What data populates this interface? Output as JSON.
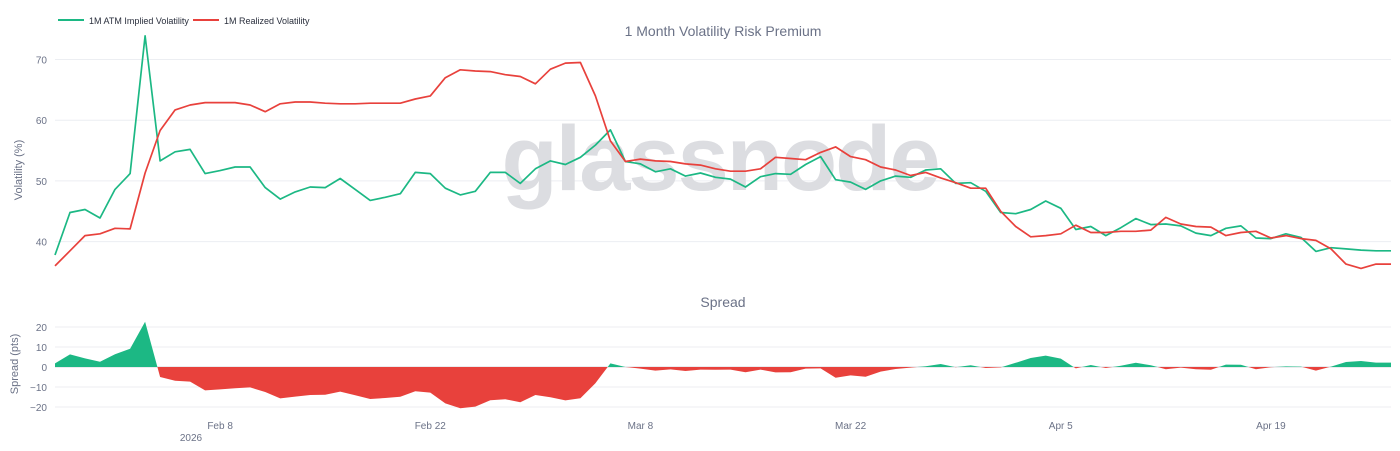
{
  "chart_data": [
    {
      "type": "line",
      "title": "1 Month Volatility Risk Premium",
      "ylabel": "Volatility (%)",
      "ylim": [
        35,
        77
      ],
      "yticks": [
        "40",
        "50",
        "60",
        "70"
      ],
      "legend_position": "top-left",
      "watermark": "glassnode",
      "x": [
        "2026-01-28",
        "2026-01-29",
        "2026-01-30",
        "2026-01-31",
        "2026-02-01",
        "2026-02-02",
        "2026-02-03",
        "2026-02-04",
        "2026-02-05",
        "2026-02-06",
        "2026-02-07",
        "2026-02-08",
        "2026-02-09",
        "2026-02-10",
        "2026-02-11",
        "2026-02-12",
        "2026-02-13",
        "2026-02-14",
        "2026-02-15",
        "2026-02-16",
        "2026-02-17",
        "2026-02-18",
        "2026-02-19",
        "2026-02-20",
        "2026-02-21",
        "2026-02-22",
        "2026-02-23",
        "2026-02-24",
        "2026-02-25",
        "2026-02-26",
        "2026-02-27",
        "2026-02-28",
        "2026-03-01",
        "2026-03-02",
        "2026-03-03",
        "2026-03-04",
        "2026-03-05",
        "2026-03-06",
        "2026-03-07",
        "2026-03-08",
        "2026-03-09",
        "2026-03-10",
        "2026-03-11",
        "2026-03-12",
        "2026-03-13",
        "2026-03-14",
        "2026-03-15",
        "2026-03-16",
        "2026-03-17",
        "2026-03-18",
        "2026-03-19",
        "2026-03-20",
        "2026-03-21",
        "2026-03-22",
        "2026-03-23",
        "2026-03-24",
        "2026-03-25",
        "2026-03-26",
        "2026-03-27",
        "2026-03-28",
        "2026-03-29",
        "2026-03-30",
        "2026-03-31",
        "2026-04-01",
        "2026-04-02",
        "2026-04-03",
        "2026-04-04",
        "2026-04-05",
        "2026-04-06",
        "2026-04-07",
        "2026-04-08",
        "2026-04-09",
        "2026-04-10",
        "2026-04-11",
        "2026-04-12",
        "2026-04-13",
        "2026-04-14",
        "2026-04-15",
        "2026-04-16",
        "2026-04-17",
        "2026-04-18",
        "2026-04-19",
        "2026-04-20",
        "2026-04-21",
        "2026-04-22",
        "2026-04-23",
        "2026-04-24",
        "2026-04-25",
        "2026-04-26",
        "2026-04-27"
      ],
      "series": [
        {
          "name": "1M ATM Implied Volatility",
          "color": "#1cb884",
          "values": [
            37.8,
            44.8,
            45.3,
            43.9,
            48.6,
            51.2,
            73.9,
            53.3,
            54.8,
            55.2,
            51.2,
            51.7,
            52.3,
            52.3,
            48.9,
            47.0,
            48.2,
            49.0,
            48.9,
            50.4,
            48.6,
            46.8,
            47.3,
            47.9,
            51.4,
            51.2,
            48.8,
            47.7,
            48.3,
            51.4,
            51.4,
            49.6,
            52.0,
            53.3,
            52.7,
            53.9,
            55.9,
            58.4,
            53.2,
            52.8,
            51.5,
            52.0,
            50.8,
            51.3,
            50.6,
            50.3,
            49.0,
            50.7,
            51.2,
            51.1,
            52.7,
            54.0,
            50.2,
            49.8,
            48.6,
            50.0,
            50.8,
            50.6,
            51.8,
            52.0,
            49.6,
            49.7,
            48.3,
            44.8,
            44.6,
            45.3,
            46.7,
            45.5,
            42.0,
            42.5,
            41.0,
            42.3,
            43.8,
            42.8,
            42.9,
            42.6,
            41.4,
            41.0,
            42.2,
            42.6,
            40.6,
            40.5,
            41.3,
            40.7,
            38.4,
            39.0,
            38.8,
            38.6,
            38.5,
            38.5
          ]
        },
        {
          "name": "1M Realized Volatility",
          "color": "#e8413c",
          "values": [
            36.0,
            38.5,
            41.0,
            41.3,
            42.2,
            42.1,
            51.3,
            58.3,
            61.7,
            62.5,
            62.9,
            62.9,
            62.9,
            62.5,
            61.4,
            62.7,
            63.0,
            63.0,
            62.8,
            62.7,
            62.7,
            62.8,
            62.8,
            62.8,
            63.5,
            64.0,
            67.0,
            68.3,
            68.1,
            68.0,
            67.5,
            67.2,
            66.0,
            68.4,
            69.4,
            69.5,
            64.0,
            56.6,
            53.2,
            53.6,
            53.3,
            53.2,
            52.8,
            52.6,
            52.0,
            51.6,
            51.6,
            52.0,
            53.9,
            53.7,
            53.5,
            54.7,
            55.6,
            54.0,
            53.5,
            52.3,
            51.8,
            50.9,
            51.4,
            50.5,
            49.7,
            48.8,
            48.8,
            45.0,
            42.5,
            40.8,
            41.0,
            41.3,
            42.7,
            41.5,
            41.5,
            41.7,
            41.7,
            41.9,
            44.0,
            42.9,
            42.5,
            42.4,
            41.0,
            41.5,
            41.7,
            40.6,
            41.0,
            40.5,
            40.2,
            38.8,
            36.3,
            35.6,
            36.3,
            36.3
          ]
        }
      ]
    },
    {
      "type": "area",
      "title": "Spread",
      "ylabel": "Spread (pts)",
      "ylim": [
        -26,
        24
      ],
      "yticks": [
        "20",
        "10",
        "0",
        "−10",
        "−20"
      ],
      "positive_color": "#1cb884",
      "negative_color": "#e8413c",
      "values": [
        1.8,
        6.3,
        4.3,
        2.6,
        6.4,
        9.1,
        22.6,
        -5.0,
        -6.9,
        -7.3,
        -11.7,
        -11.2,
        -10.6,
        -10.2,
        -12.5,
        -15.7,
        -14.8,
        -14.0,
        -13.9,
        -12.3,
        -14.1,
        -16.0,
        -15.5,
        -14.9,
        -12.1,
        -12.8,
        -18.2,
        -20.6,
        -19.8,
        -16.6,
        -16.1,
        -17.6,
        -14.0,
        -15.1,
        -16.7,
        -15.6,
        -8.1,
        1.8,
        0.0,
        -0.8,
        -1.8,
        -1.2,
        -2.0,
        -1.3,
        -1.4,
        -1.3,
        -2.6,
        -1.3,
        -2.7,
        -2.6,
        -0.8,
        -0.7,
        -5.4,
        -4.2,
        -4.9,
        -2.3,
        -1.0,
        -0.3,
        0.4,
        1.5,
        -0.1,
        0.9,
        -0.5,
        -0.2,
        2.1,
        4.5,
        5.7,
        4.2,
        -0.7,
        1.0,
        -0.5,
        0.6,
        2.1,
        0.9,
        -1.1,
        -0.3,
        -1.1,
        -1.4,
        1.2,
        1.1,
        -1.1,
        -0.1,
        0.3,
        0.2,
        -1.8,
        0.2,
        2.5,
        3.0,
        2.2,
        2.2
      ]
    }
  ],
  "x_axis": {
    "tick_labels": [
      "Feb 8",
      "Feb 22",
      "Mar 8",
      "Mar 22",
      "Apr 5",
      "Apr 19"
    ],
    "tick_dates": [
      "2026-02-08",
      "2026-02-22",
      "2026-03-08",
      "2026-03-22",
      "2026-04-05",
      "2026-04-19"
    ],
    "year_label": "2026"
  }
}
